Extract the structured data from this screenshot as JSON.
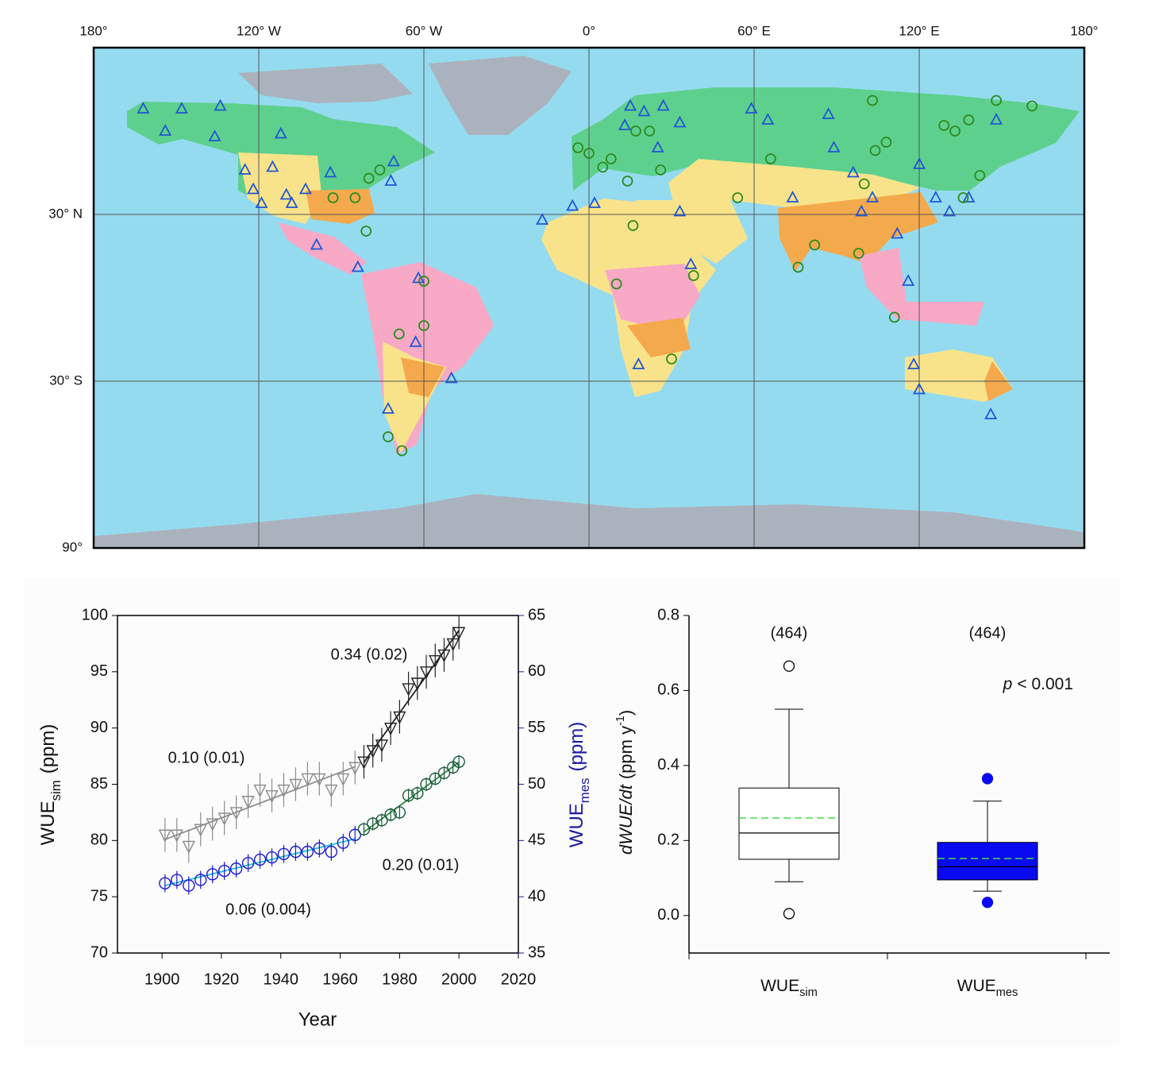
{
  "chart_data": [
    {
      "type": "map",
      "xlim": [
        -180,
        180
      ],
      "ylim": [
        -90,
        90
      ],
      "xticks": [
        {
          "value": -180,
          "label": "180°"
        },
        {
          "value": -120,
          "label": "120° W"
        },
        {
          "value": -60,
          "label": "60° W"
        },
        {
          "value": 0,
          "label": "0°"
        },
        {
          "value": 60,
          "label": "60° E"
        },
        {
          "value": 120,
          "label": "120° E"
        },
        {
          "value": 180,
          "label": "180°"
        }
      ],
      "yticks": [
        {
          "value": 30,
          "label": "30° N"
        },
        {
          "value": -30,
          "label": "30° S"
        },
        {
          "value": -90,
          "label": "90°"
        }
      ],
      "grid": true,
      "series": [
        {
          "marker": "triangle",
          "color": "#1f55d4",
          "x": [
            -162,
            -154,
            -148,
            -134,
            -136,
            -125,
            -122,
            -119,
            -115,
            -112,
            -110,
            -108,
            -103,
            -99,
            -94,
            -84,
            -71,
            -72,
            -62,
            -63,
            -73,
            -50,
            -17,
            -6,
            2,
            15,
            13,
            20,
            27,
            25,
            33,
            33,
            37,
            18,
            59,
            65,
            74,
            87,
            89,
            96,
            99,
            103,
            112,
            116,
            118,
            120,
            120,
            126,
            138,
            146,
            148,
            131
          ],
          "y": [
            68,
            60,
            68,
            69,
            58,
            46,
            39,
            34,
            47,
            59,
            37,
            34,
            39,
            19,
            45,
            11,
            49,
            42,
            7,
            -16,
            -40,
            -29,
            28,
            33,
            34,
            69,
            62,
            67,
            69,
            54,
            63,
            31,
            12,
            -24,
            68,
            64,
            36,
            66,
            54,
            45,
            31,
            36,
            23,
            6,
            -24,
            -33,
            48,
            36,
            36,
            -42,
            64,
            31
          ]
        },
        {
          "marker": "circle",
          "color": "#2e8b1e",
          "x": [
            -93,
            -85,
            -81,
            -80,
            -76,
            -60,
            -69,
            -60,
            -73,
            -68,
            -4,
            0,
            5,
            8,
            14,
            17,
            22,
            16,
            10,
            30,
            54,
            76,
            82,
            98,
            100,
            103,
            104,
            108,
            129,
            133,
            138,
            148,
            161,
            142,
            136,
            111,
            26,
            66,
            38
          ],
          "y": [
            36,
            36,
            24,
            43,
            46,
            6,
            -13,
            -10,
            -50,
            -55,
            54,
            52,
            47,
            50,
            42,
            60,
            60,
            26,
            5,
            -22,
            36,
            11,
            19,
            16,
            41,
            71,
            53,
            56,
            62,
            60,
            64,
            71,
            69,
            44,
            36,
            -7,
            46,
            50,
            8
          ]
        }
      ]
    },
    {
      "type": "line",
      "xlim": [
        1885,
        2020
      ],
      "ylim": [
        70,
        100
      ],
      "y2lim": [
        35,
        65
      ],
      "xticks": [
        1900,
        1920,
        1940,
        1960,
        1980,
        2000,
        2020
      ],
      "yticks": [
        70,
        75,
        80,
        85,
        90,
        95,
        100
      ],
      "y2ticks": [
        35,
        40,
        45,
        50,
        55,
        60,
        65
      ],
      "y2_color": "#1a1aa0",
      "x_label": "Year",
      "y_label": {
        "main": "WUE",
        "sub": "sim",
        "unit": "(ppm)"
      },
      "y2_label": {
        "main": "WUE",
        "sub": "mes",
        "unit": "(ppm)"
      },
      "series": [
        {
          "marker": "triangle-down",
          "color": "#8c8c8c",
          "x": [
            1901,
            1905,
            1909,
            1913,
            1917,
            1921,
            1925,
            1929,
            1933,
            1937,
            1941,
            1945,
            1949,
            1953,
            1957,
            1961,
            1965
          ],
          "values": [
            80.5,
            80.5,
            79.5,
            81,
            81.5,
            82,
            82.5,
            83.5,
            84.5,
            84,
            84.5,
            85,
            85.5,
            85.5,
            84.5,
            85.5,
            86.5
          ],
          "errors": [
            1.5,
            1.5,
            1.5,
            1.5,
            1.5,
            1.5,
            1.5,
            1.5,
            1.5,
            1.5,
            1.5,
            1.5,
            1.5,
            1.5,
            1.5,
            1.5,
            1.5
          ]
        },
        {
          "marker": "triangle-down",
          "color": "#222222",
          "x": [
            1968,
            1971,
            1974,
            1977,
            1980,
            1983,
            1986,
            1989,
            1992,
            1995,
            1998,
            2000
          ],
          "values": [
            87,
            88,
            88.5,
            90,
            91,
            93.5,
            94,
            95,
            96,
            96.5,
            97.5,
            98.5
          ],
          "errors": [
            1.5,
            1.5,
            1.5,
            1.5,
            1.5,
            1.5,
            1.5,
            1.5,
            1.5,
            1.5,
            1.5,
            1.5
          ]
        },
        {
          "marker": "circle",
          "color": "#1a1ad0",
          "trend_color": "#22c0e0",
          "axis": "y2",
          "x": [
            1901,
            1905,
            1909,
            1913,
            1917,
            1921,
            1925,
            1929,
            1933,
            1937,
            1941,
            1945,
            1949,
            1953,
            1957,
            1961,
            1965
          ],
          "values": [
            41.2,
            41.5,
            41,
            41.5,
            42,
            42.3,
            42.5,
            43,
            43.3,
            43.5,
            43.8,
            44,
            44,
            44.3,
            44,
            44.8,
            45.5
          ],
          "errors": [
            0.8,
            0.8,
            0.8,
            0.8,
            0.8,
            0.8,
            0.8,
            0.8,
            0.8,
            0.8,
            0.8,
            0.8,
            0.8,
            0.8,
            0.8,
            0.8,
            0.8
          ]
        },
        {
          "marker": "circle",
          "color": "#1a5a3a",
          "trend_color": "#2e8b3e",
          "axis": "y2",
          "x": [
            1968,
            1971,
            1974,
            1977,
            1980,
            1983,
            1986,
            1989,
            1992,
            1995,
            1998,
            2000
          ],
          "values": [
            46,
            46.5,
            46.8,
            47.3,
            47.5,
            49,
            49.2,
            50,
            50.5,
            51,
            51.5,
            52
          ],
          "errors": [
            0.6,
            0.6,
            0.6,
            0.6,
            0.6,
            0.6,
            0.6,
            0.6,
            0.6,
            0.6,
            0.6,
            0.6
          ]
        }
      ],
      "annotations": [
        "0.10 (0.01)",
        "0.34 (0.02)",
        "0.06 (0.004)",
        "0.20 (0.01)"
      ]
    },
    {
      "type": "box",
      "ylim": [
        -0.1,
        0.8
      ],
      "yticks": [
        {
          "value": 0,
          "label": "0.0"
        },
        0.2,
        0.4,
        0.6,
        0.8
      ],
      "y_label": {
        "italic": "dWUE/dt",
        "unit": "(ppm y",
        "sup": "-1",
        "close": ")"
      },
      "categories": [
        {
          "main": "WUE",
          "sub": "sim"
        },
        {
          "main": "WUE",
          "sub": "mes"
        }
      ],
      "count_labels": [
        "(464)",
        "(464)"
      ],
      "annotation": {
        "italic": "p",
        "text": "< 0.001"
      },
      "mean_color": "#44dd44",
      "boxes": [
        {
          "fill": "#ffffff",
          "outlier_fill": "none",
          "whisker_low": 0.09,
          "q1": 0.15,
          "median": 0.22,
          "q3": 0.34,
          "whisker_high": 0.55,
          "mean": 0.26,
          "outliers": [
            0.005,
            0.665
          ]
        },
        {
          "fill": "#0a0af0",
          "outlier_fill": "#0a0af0",
          "whisker_low": 0.065,
          "q1": 0.095,
          "median": 0.13,
          "q3": 0.195,
          "whisker_high": 0.305,
          "mean": 0.152,
          "outliers": [
            0.035,
            0.365
          ]
        }
      ]
    }
  ]
}
